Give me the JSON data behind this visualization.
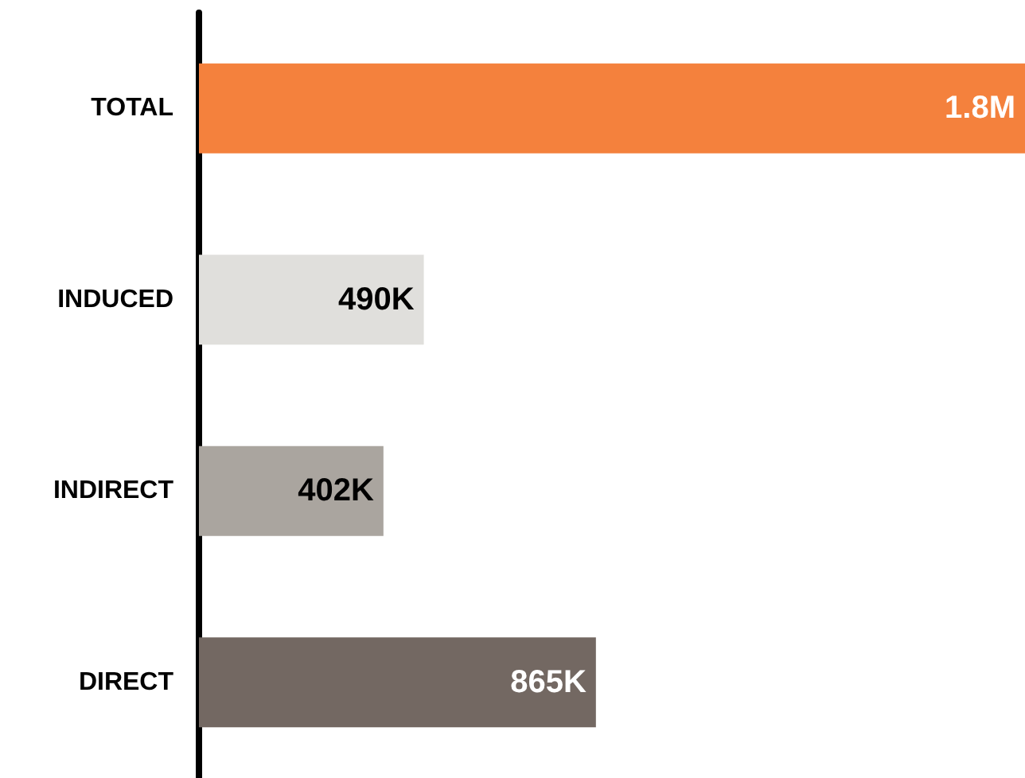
{
  "chart_data": {
    "type": "bar",
    "orientation": "horizontal",
    "categories": [
      "TOTAL",
      "INDUCED",
      "INDIRECT",
      "DIRECT"
    ],
    "values": [
      1800000,
      490000,
      402000,
      865000
    ],
    "colors": [
      "#f4813d",
      "#e0dfdc",
      "#aaa59f",
      "#736862"
    ],
    "value_labels": [
      "1.8M",
      "490K",
      "402K",
      "865K"
    ]
  }
}
